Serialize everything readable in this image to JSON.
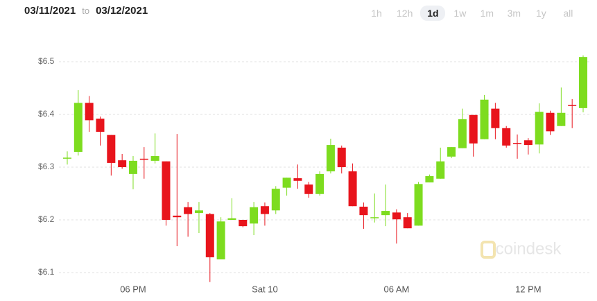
{
  "header": {
    "from": "03/11/2021",
    "to_label": "to",
    "to": "03/12/2021",
    "ranges": [
      "1h",
      "12h",
      "1d",
      "1w",
      "1m",
      "3m",
      "1y",
      "all"
    ],
    "active_range": "1d"
  },
  "watermark": "coindesk",
  "chart_data": {
    "type": "candlestick",
    "categories": [
      null,
      null,
      null,
      null,
      null,
      null,
      "06 PM",
      null,
      null,
      null,
      null,
      null,
      null,
      null,
      null,
      null,
      null,
      null,
      "Sat 10",
      null,
      null,
      null,
      null,
      null,
      null,
      null,
      null,
      null,
      null,
      null,
      "06 AM",
      null,
      null,
      null,
      null,
      null,
      null,
      null,
      null,
      null,
      null,
      null,
      "12 PM",
      null,
      null,
      null,
      null,
      null
    ],
    "open": [
      6.317,
      6.329,
      6.422,
      6.392,
      6.361,
      6.313,
      6.287,
      6.316,
      6.312,
      6.311,
      6.208,
      6.224,
      6.213,
      6.211,
      6.125,
      6.2,
      6.2,
      6.193,
      6.226,
      6.218,
      6.261,
      6.279,
      6.267,
      6.249,
      6.292,
      6.337,
      6.292,
      6.225,
      6.203,
      6.209,
      6.214,
      6.205,
      6.189,
      6.271,
      6.278,
      6.32,
      6.336,
      6.399,
      6.353,
      6.411,
      6.374,
      6.346,
      6.351,
      6.343,
      6.403,
      6.378,
      6.418,
      6.412
    ],
    "high": [
      6.33,
      6.446,
      6.435,
      6.396,
      6.361,
      6.325,
      6.321,
      6.338,
      6.364,
      6.311,
      6.363,
      6.234,
      6.234,
      6.213,
      6.205,
      6.241,
      6.2,
      6.234,
      6.233,
      6.264,
      6.28,
      6.305,
      6.272,
      6.292,
      6.354,
      6.341,
      6.307,
      6.233,
      6.25,
      6.267,
      6.22,
      6.213,
      6.272,
      6.286,
      6.337,
      6.338,
      6.411,
      6.399,
      6.437,
      6.422,
      6.378,
      6.362,
      6.355,
      6.421,
      6.407,
      6.451,
      6.429,
      6.512
    ],
    "low": [
      6.305,
      6.322,
      6.367,
      6.341,
      6.284,
      6.297,
      6.258,
      6.278,
      6.307,
      6.189,
      6.15,
      6.168,
      6.175,
      6.082,
      6.125,
      6.2,
      6.186,
      6.171,
      6.189,
      6.211,
      6.246,
      6.259,
      6.242,
      6.246,
      6.288,
      6.288,
      6.226,
      6.183,
      6.195,
      6.188,
      6.155,
      6.184,
      6.189,
      6.271,
      6.278,
      6.317,
      6.336,
      6.32,
      6.353,
      6.353,
      6.337,
      6.316,
      6.324,
      6.326,
      6.361,
      6.378,
      6.374,
      6.404
    ],
    "close": [
      6.318,
      6.422,
      6.389,
      6.367,
      6.308,
      6.3,
      6.312,
      6.314,
      6.321,
      6.2,
      6.205,
      6.211,
      6.218,
      6.129,
      6.197,
      6.203,
      6.188,
      6.224,
      6.211,
      6.259,
      6.28,
      6.274,
      6.249,
      6.287,
      6.342,
      6.3,
      6.226,
      6.209,
      6.205,
      6.217,
      6.201,
      6.184,
      6.268,
      6.283,
      6.311,
      6.338,
      6.391,
      6.345,
      6.428,
      6.374,
      6.341,
      6.345,
      6.342,
      6.405,
      6.368,
      6.403,
      6.416,
      6.509
    ],
    "up_color": "#7ddc1f",
    "down_color": "#e8141c",
    "ylim": [
      6.08,
      6.54
    ],
    "yticks": [
      {
        "value": 6.1,
        "label": "$6.1"
      },
      {
        "value": 6.2,
        "label": "$6.2"
      },
      {
        "value": 6.3,
        "label": "$6.3"
      },
      {
        "value": 6.4,
        "label": "$6.4"
      },
      {
        "value": 6.5,
        "label": "$6.5"
      }
    ],
    "grid": true
  }
}
